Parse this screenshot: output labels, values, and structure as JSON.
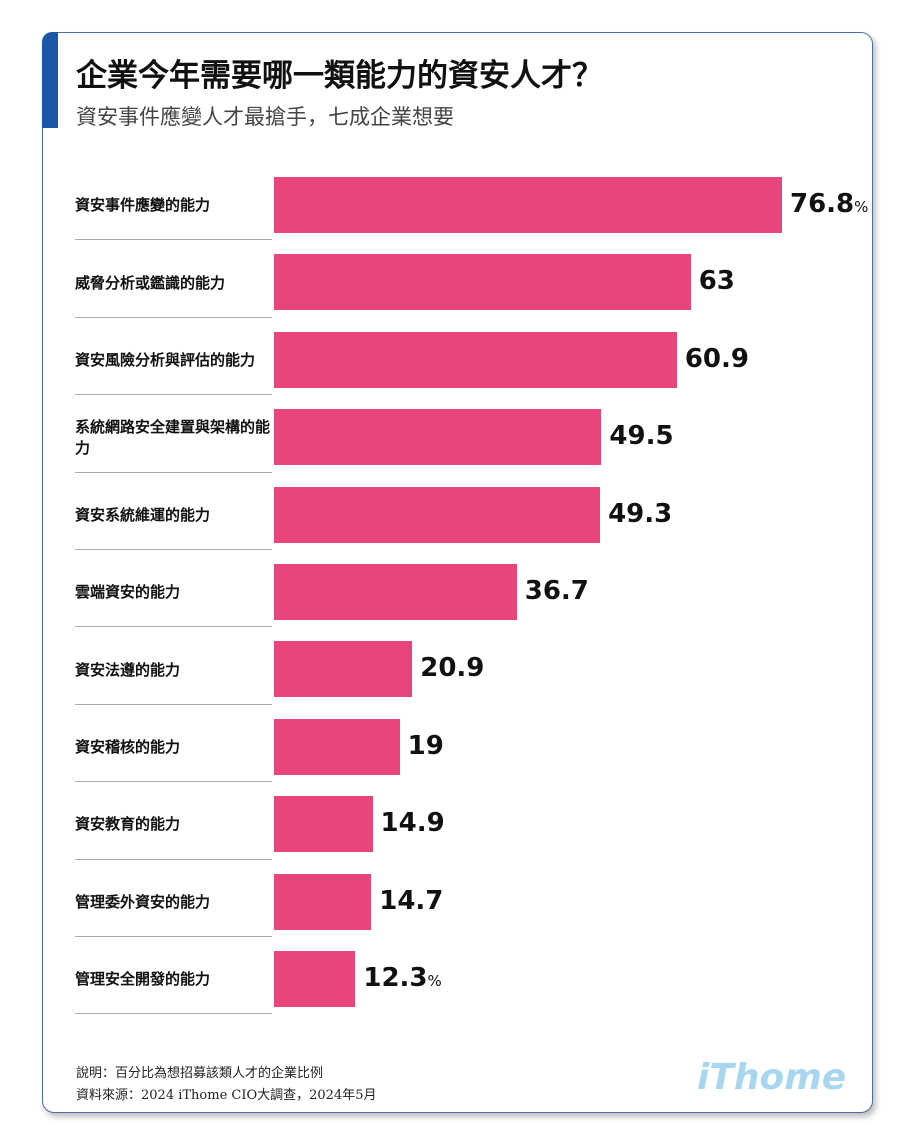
{
  "chart_data": {
    "type": "bar",
    "orientation": "horizontal",
    "title": "企業今年需要哪一類能力的資安人才？",
    "subtitle": "資安事件應變人才最搶手，七成企業想要",
    "categories": [
      "資安事件應變的能力",
      "威脅分析或鑑識的能力",
      "資安風險分析與評估的能力",
      "系統網路安全建置與架構的能力",
      "資安系統維運的能力",
      "雲端資安的能力",
      "資安法遵的能力",
      "資安稽核的能力",
      "資安教育的能力",
      "管理委外資安的能力",
      "管理安全開發的能力"
    ],
    "values": [
      76.8,
      63,
      60.9,
      49.5,
      49.3,
      36.7,
      20.9,
      19,
      14.9,
      14.7,
      12.3
    ],
    "value_labels": [
      "76.8%",
      "63",
      "60.9",
      "49.5",
      "49.3",
      "36.7",
      "20.9",
      "19",
      "14.9",
      "14.7",
      "12.3%"
    ],
    "color": "#e8457a",
    "notes": [
      "說明：百分比為想招募該類人才的企業比例",
      "資料來源：2024 iThome CIO大調查，2024年5月"
    ],
    "logo": "iThome"
  }
}
